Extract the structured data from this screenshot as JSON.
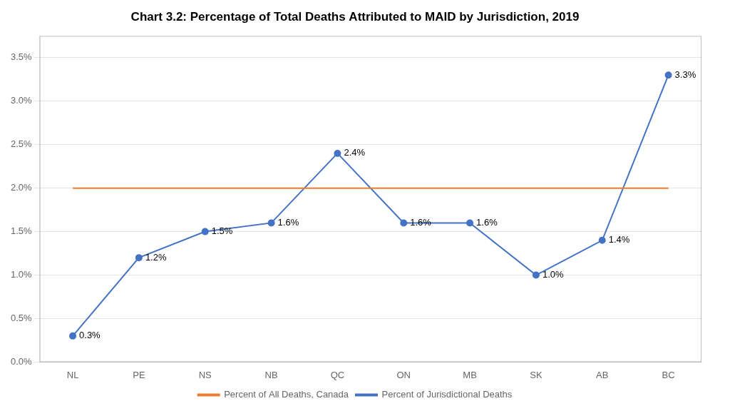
{
  "chart_data": {
    "type": "line",
    "title": "Chart 3.2: Percentage of Total Deaths Attributed to MAID by Jurisdiction, 2019",
    "categories": [
      "NL",
      "PE",
      "NS",
      "NB",
      "QC",
      "ON",
      "MB",
      "SK",
      "AB",
      "BC"
    ],
    "series": [
      {
        "name": "Percent of Jurisdictional Deaths",
        "color": "#4472C4",
        "marker": "circle",
        "line_style": "solid",
        "values": [
          0.3,
          1.2,
          1.5,
          1.6,
          2.4,
          1.6,
          1.6,
          1.0,
          1.4,
          3.3
        ],
        "data_labels": true,
        "value_labels": [
          "0.3%",
          "1.2%",
          "1.5%",
          "1.6%",
          "2.4%",
          "1.6%",
          "1.6%",
          "1.0%",
          "1.4%",
          "3.3%"
        ]
      },
      {
        "name": "Percent of All Deaths, Canada",
        "color": "#ED7D31",
        "marker": "none",
        "line_style": "solid",
        "values": [
          2.0,
          2.0,
          2.0,
          2.0,
          2.0,
          2.0,
          2.0,
          2.0,
          2.0,
          2.0
        ]
      }
    ],
    "ylim": [
      0.0,
      3.75
    ],
    "yticks": [
      {
        "value": 0.0,
        "label": "0.0%"
      },
      {
        "value": 0.5,
        "label": "0.5%"
      },
      {
        "value": 1.0,
        "label": "1.0%"
      },
      {
        "value": 1.5,
        "label": "1.5%"
      },
      {
        "value": 2.0,
        "label": "2.0%"
      },
      {
        "value": 2.5,
        "label": "2.5%"
      },
      {
        "value": 3.0,
        "label": "3.0%"
      },
      {
        "value": 3.5,
        "label": "3.5%"
      }
    ],
    "grid": true,
    "legend": "bottom"
  }
}
